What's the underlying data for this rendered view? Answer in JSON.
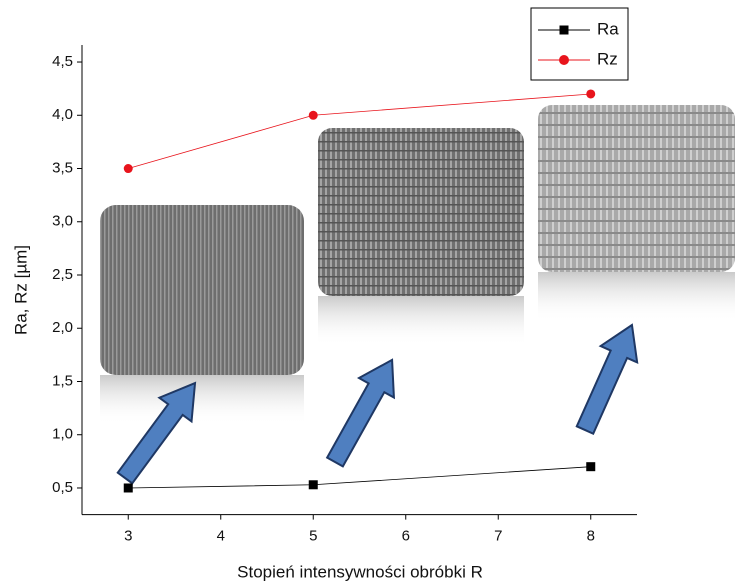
{
  "chart_data": {
    "type": "line",
    "xlabel": "Stopień intensywności obróbki R",
    "ylabel": "Ra, Rz [µm]",
    "x": [
      3,
      5,
      8
    ],
    "series": [
      {
        "name": "Ra",
        "color": "#000000",
        "marker": "square",
        "values": [
          0.5,
          0.53,
          0.7
        ]
      },
      {
        "name": "Rz",
        "color": "#e8141c",
        "marker": "circle",
        "values": [
          3.5,
          4.0,
          4.2
        ]
      }
    ],
    "xlim": [
      2.5,
      8.5
    ],
    "xticks": [
      3,
      4,
      5,
      6,
      7,
      8
    ],
    "ylim": [
      0.25,
      4.75
    ],
    "yticks": [
      {
        "value": 0.5,
        "label": "0,5"
      },
      {
        "value": 1.0,
        "label": "1,0"
      },
      {
        "value": 1.5,
        "label": "1,5"
      },
      {
        "value": 2.0,
        "label": "2,0"
      },
      {
        "value": 2.5,
        "label": "2,5"
      },
      {
        "value": 3.0,
        "label": "3,0"
      },
      {
        "value": 3.5,
        "label": "3,5"
      },
      {
        "value": 4.0,
        "label": "4,0"
      },
      {
        "value": 4.5,
        "label": "4,5"
      }
    ],
    "legend": "top-right"
  }
}
